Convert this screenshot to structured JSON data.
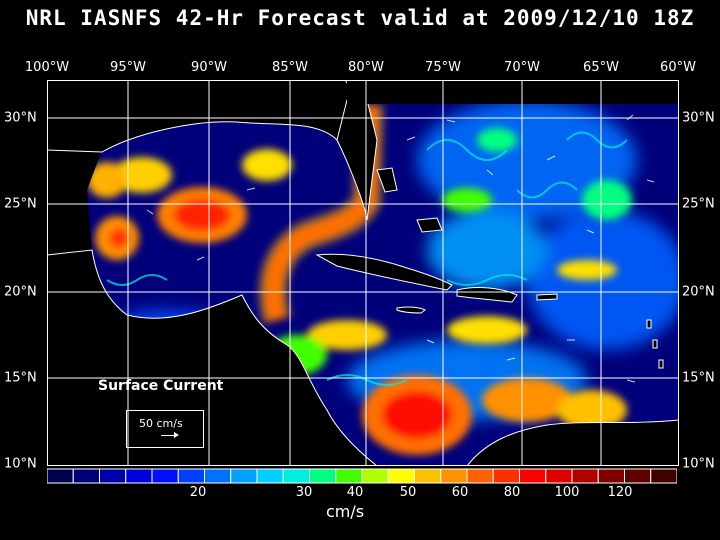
{
  "title": "NRL IASNFS  42-Hr Forecast valid at 2009/12/10 18Z",
  "lon_labels": [
    "100°W",
    "95°W",
    "90°W",
    "85°W",
    "80°W",
    "75°W",
    "70°W",
    "65°W",
    "60°W"
  ],
  "lat_labels": [
    "30°N",
    "25°N",
    "20°N",
    "15°N",
    "10°N"
  ],
  "legend": {
    "label": "Surface Current",
    "reference_vector": "50 cm/s"
  },
  "colorbar": {
    "ticks": [
      "20",
      "30",
      "40",
      "50",
      "60",
      "80",
      "100",
      "120"
    ],
    "units": "cm/s",
    "colors": [
      "#000050",
      "#00007a",
      "#0000a8",
      "#0000d8",
      "#0010ff",
      "#0040ff",
      "#0070ff",
      "#00a0ff",
      "#00d0ff",
      "#00f0e0",
      "#00ff80",
      "#40ff00",
      "#b0ff00",
      "#ffff00",
      "#ffc000",
      "#ff9000",
      "#ff6000",
      "#ff3000",
      "#ff0000",
      "#e00000",
      "#b00000",
      "#800000",
      "#600000",
      "#400000"
    ]
  },
  "colors": {
    "land": "#000000",
    "coast": "#ffffff",
    "grid": "#ffffff"
  }
}
